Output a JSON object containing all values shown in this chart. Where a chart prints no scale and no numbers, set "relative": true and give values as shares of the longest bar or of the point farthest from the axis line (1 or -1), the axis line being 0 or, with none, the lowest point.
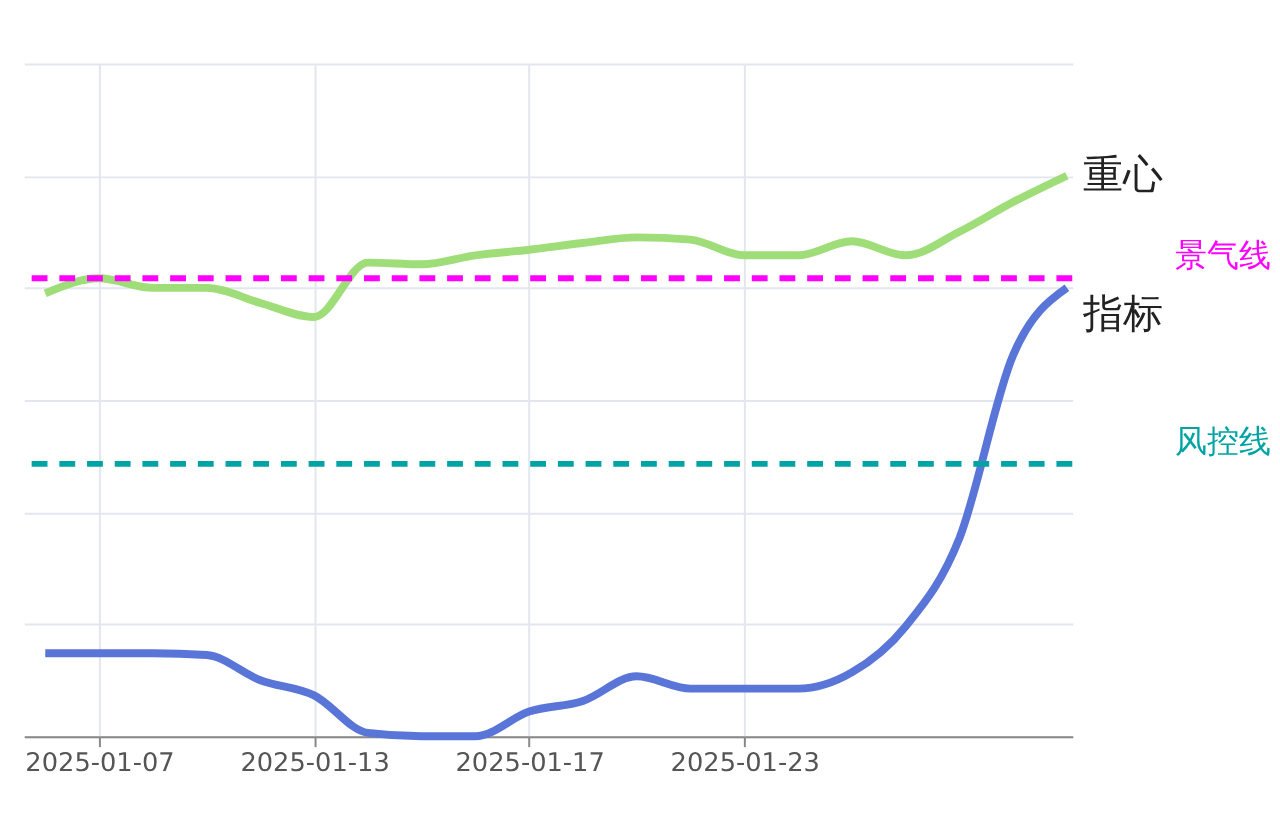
{
  "chart_data": {
    "type": "line",
    "relative": true,
    "categories": [
      null,
      "2025-01-07",
      null,
      null,
      null,
      "2025-01-13",
      null,
      null,
      null,
      "2025-01-17",
      null,
      null,
      null,
      "2025-01-23",
      null,
      null,
      null,
      null,
      null,
      null
    ],
    "series": [
      {
        "name": "重心",
        "color": "#9fdd79",
        "values": [
          0.79,
          0.817,
          0.8,
          0.8,
          0.773,
          0.748,
          0.845,
          0.842,
          0.858,
          0.868,
          0.88,
          0.89,
          0.886,
          0.858,
          0.858,
          0.883,
          0.858,
          0.9,
          0.953,
          1.0
        ]
      },
      {
        "name": "指标",
        "color": "#5a75d8",
        "values": [
          0.148,
          0.148,
          0.148,
          0.145,
          0.1,
          0.073,
          0.006,
          0.0,
          0.0,
          0.044,
          0.063,
          0.107,
          0.085,
          0.085,
          0.085,
          0.114,
          0.196,
          0.353,
          0.68,
          0.8
        ]
      }
    ],
    "ref_lines": [
      {
        "axis": "y",
        "value": 0.817,
        "label": "景气线",
        "color": "#ff00ff",
        "line_style": "dashed"
      },
      {
        "axis": "y",
        "value": 0.486,
        "label": "风控线",
        "color": "#00a3a3",
        "line_style": "dashed"
      }
    ],
    "grid": true,
    "legend": false,
    "marker": "none",
    "line_style": "solid"
  }
}
